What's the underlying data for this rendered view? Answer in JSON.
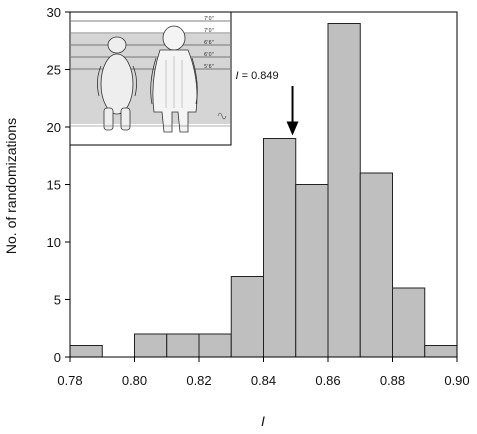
{
  "chart_data": {
    "type": "bar",
    "title": "",
    "xlabel": "I",
    "ylabel": "No. of randomizations",
    "xlim": [
      0.78,
      0.9
    ],
    "ylim": [
      0,
      30
    ],
    "bin_width": 0.01,
    "bin_starts": [
      0.78,
      0.79,
      0.8,
      0.81,
      0.82,
      0.83,
      0.84,
      0.85,
      0.86,
      0.87,
      0.88,
      0.89
    ],
    "values": [
      1,
      0,
      2,
      2,
      2,
      7,
      19,
      15,
      29,
      16,
      6,
      1
    ],
    "x_ticks": [
      {
        "value": 0.78,
        "label": "0.78"
      },
      {
        "value": 0.8,
        "label": "0.80"
      },
      {
        "value": 0.82,
        "label": "0.82"
      },
      {
        "value": 0.84,
        "label": "0.84"
      },
      {
        "value": 0.86,
        "label": "0.86"
      },
      {
        "value": 0.88,
        "label": "0.88"
      },
      {
        "value": 0.9,
        "label": "0.90"
      }
    ],
    "y_ticks": [
      {
        "value": 0,
        "label": "0"
      },
      {
        "value": 5,
        "label": "5"
      },
      {
        "value": 10,
        "label": "10"
      },
      {
        "value": 15,
        "label": "15"
      },
      {
        "value": 20,
        "label": "20"
      },
      {
        "value": 25,
        "label": "25"
      },
      {
        "value": 30,
        "label": "30"
      }
    ],
    "annotation": {
      "symbol": "I",
      "text": " = 0.849",
      "x": 0.849,
      "arrow_to_y": 19
    },
    "grid": false,
    "colors": {
      "bar_fill": "#bfbfbf",
      "bar_stroke": "#222222",
      "axis": "#000000"
    }
  },
  "inset": {
    "description_icon": "bear-and-bigfoot-sketch-icon",
    "height_marks": [
      "7'0\"",
      "7'0\"",
      "6'6\"",
      "6'0\"",
      "5'6\""
    ]
  }
}
